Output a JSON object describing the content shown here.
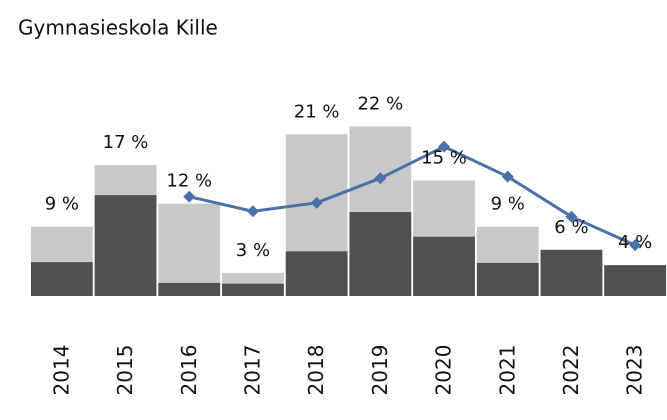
{
  "chart_data": {
    "type": "bar",
    "title": "Gymnasieskola Kille",
    "overlap": true,
    "categories": [
      "2014",
      "2015",
      "2016",
      "2017",
      "2018",
      "2019",
      "2020",
      "2021",
      "2022",
      "2023"
    ],
    "ylim": [
      0,
      30
    ],
    "series": [
      {
        "color": "#c8c8c8",
        "values": [
          9,
          17,
          12,
          3,
          21,
          22,
          15,
          9,
          6,
          4
        ],
        "value_labels": [
          "9 %",
          "17 %",
          "12 %",
          "3 %",
          "21 %",
          "22 %",
          "15 %",
          "9 %",
          "6 %",
          "4 %"
        ]
      },
      {
        "color": "#505050",
        "values": [
          4.4,
          13.1,
          1.7,
          1.6,
          5.8,
          10.9,
          7.7,
          4.3,
          6,
          4
        ]
      },
      {
        "type": "line",
        "color": "#4a72a8",
        "values": [
          null,
          null,
          12.9,
          11.0,
          12.1,
          15.3,
          19.4,
          15.5,
          10.3,
          6.6
        ]
      }
    ]
  }
}
